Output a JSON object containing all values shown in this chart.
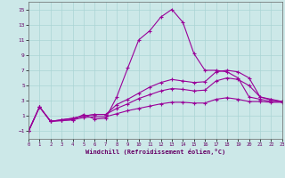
{
  "xlabel": "Windchill (Refroidissement éolien,°C)",
  "background_color": "#cce8e8",
  "grid_color": "#aad4d4",
  "line_color": "#990099",
  "xlim": [
    0,
    23
  ],
  "ylim": [
    -2,
    16
  ],
  "xticks": [
    0,
    1,
    2,
    3,
    4,
    5,
    6,
    7,
    8,
    9,
    10,
    11,
    12,
    13,
    14,
    15,
    16,
    17,
    18,
    19,
    20,
    21,
    22,
    23
  ],
  "yticks": [
    -1,
    1,
    3,
    5,
    7,
    9,
    11,
    13,
    15
  ],
  "line1_x": [
    0,
    1,
    2,
    3,
    4,
    5,
    6,
    7,
    8,
    9,
    10,
    11,
    12,
    13,
    14,
    15,
    16,
    17,
    18,
    19,
    20,
    21,
    22,
    23
  ],
  "line1_y": [
    -1.0,
    2.2,
    0.3,
    0.4,
    0.5,
    1.2,
    0.6,
    0.7,
    3.5,
    7.3,
    11.0,
    12.2,
    14.0,
    15.0,
    13.3,
    9.2,
    7.0,
    7.0,
    6.8,
    6.0,
    3.5,
    3.2,
    2.9,
    2.9
  ],
  "line2_x": [
    0,
    1,
    2,
    3,
    4,
    5,
    6,
    7,
    8,
    9,
    10,
    11,
    12,
    13,
    14,
    15,
    16,
    17,
    18,
    19,
    20,
    21,
    22,
    23
  ],
  "line2_y": [
    -1.0,
    2.2,
    0.3,
    0.5,
    0.7,
    1.0,
    1.2,
    1.2,
    2.5,
    3.2,
    4.0,
    4.8,
    5.4,
    5.8,
    5.6,
    5.4,
    5.5,
    6.8,
    7.0,
    6.8,
    6.0,
    3.5,
    3.2,
    2.9
  ],
  "line3_x": [
    0,
    1,
    2,
    3,
    4,
    5,
    6,
    7,
    8,
    9,
    10,
    11,
    12,
    13,
    14,
    15,
    16,
    17,
    18,
    19,
    20,
    21,
    22,
    23
  ],
  "line3_y": [
    -1.0,
    2.2,
    0.3,
    0.5,
    0.7,
    1.0,
    1.2,
    1.2,
    2.0,
    2.6,
    3.3,
    3.8,
    4.3,
    4.6,
    4.5,
    4.3,
    4.4,
    5.6,
    6.0,
    5.8,
    5.0,
    3.5,
    3.1,
    2.9
  ],
  "line4_x": [
    0,
    1,
    2,
    3,
    4,
    5,
    6,
    7,
    8,
    9,
    10,
    11,
    12,
    13,
    14,
    15,
    16,
    17,
    18,
    19,
    20,
    21,
    22,
    23
  ],
  "line4_y": [
    -1.0,
    2.2,
    0.3,
    0.4,
    0.5,
    0.8,
    0.9,
    0.9,
    1.3,
    1.7,
    2.0,
    2.3,
    2.6,
    2.8,
    2.8,
    2.7,
    2.7,
    3.2,
    3.4,
    3.2,
    2.9,
    2.9,
    2.8,
    2.8
  ],
  "marker": "+",
  "markersize": 3,
  "linewidth": 0.8
}
